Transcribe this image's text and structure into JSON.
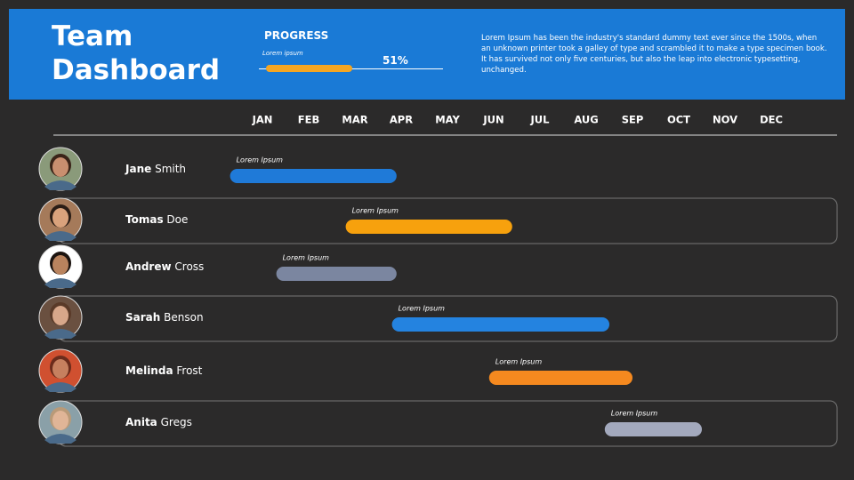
{
  "header": {
    "title": "Team Dashboard",
    "progress": {
      "label": "PROGRESS",
      "caption": "Lorem ipsum",
      "value": {
        "value": 51,
        "label": "51%"
      },
      "color": "#f5a623"
    },
    "description": "Lorem Ipsum has been the industry's standard dummy text ever since the 1500s, when an unknown printer took a galley of type and scrambled it to make a type specimen book. It has survived not only five centuries, but also the leap into electronic typesetting, unchanged."
  },
  "timeline": {
    "months": [
      "JAN",
      "FEB",
      "MAR",
      "APR",
      "MAY",
      "JUN",
      "JUL",
      "AUG",
      "SEP",
      "OCT",
      "NOV",
      "DEC"
    ],
    "xlim": [
      0,
      12
    ],
    "rows": [
      {
        "first": "Jane",
        "last": "Smith",
        "bar_label": "Lorem Ipsum",
        "start": -0.2,
        "end": 3.4,
        "color": "#1f7ad8"
      },
      {
        "first": "Tomas",
        "last": "Doe",
        "bar_label": "Lorem Ipsum",
        "start": 2.3,
        "end": 5.9,
        "color": "#f7a10d"
      },
      {
        "first": "Andrew",
        "last": "Cross",
        "bar_label": "Lorem Ipsum",
        "start": 0.8,
        "end": 3.4,
        "color": "#7b86a0"
      },
      {
        "first": "Sarah",
        "last": "Benson",
        "bar_label": "Lorem Ipsum",
        "start": 3.3,
        "end": 8.0,
        "color": "#2483e0"
      },
      {
        "first": "Melinda",
        "last": "Frost",
        "bar_label": "Lorem Ipsum",
        "start": 5.4,
        "end": 8.5,
        "color": "#f5891f"
      },
      {
        "first": "Anita",
        "last": "Gregs",
        "bar_label": "Lorem Ipsum",
        "start": 7.9,
        "end": 10.0,
        "color": "#a3a9bd"
      }
    ]
  }
}
